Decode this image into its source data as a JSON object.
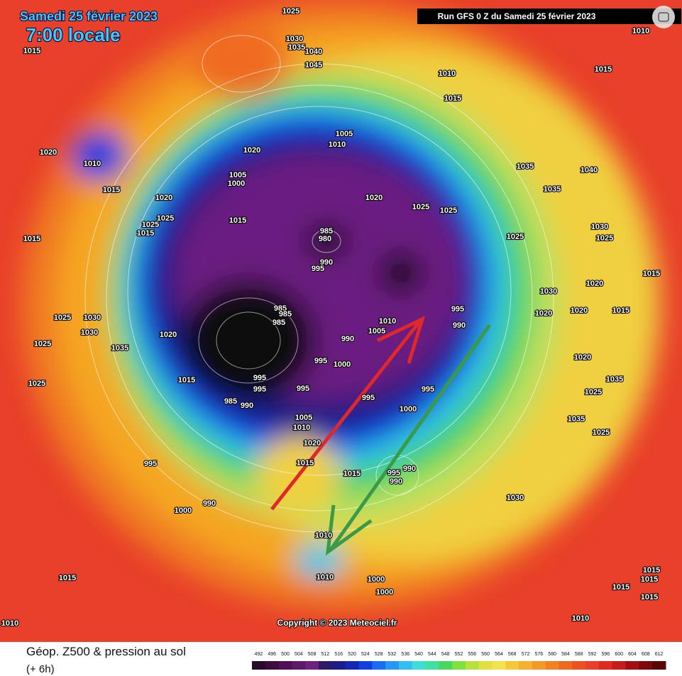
{
  "header": {
    "date": "Samedi 25 février 2023",
    "time": "7:00 locale",
    "run": "Run GFS 0 Z du Samedi 25 février 2023"
  },
  "copyright": "Copyright © 2023 Meteociel.fr",
  "legend": {
    "title": "Géop. Z500 & pression au sol",
    "subtitle": "(+ 6h)",
    "scale": [
      492,
      496,
      500,
      504,
      508,
      512,
      516,
      520,
      524,
      528,
      532,
      536,
      540,
      544,
      548,
      552,
      556,
      560,
      564,
      568,
      572,
      576,
      580,
      584,
      588,
      592,
      596,
      600,
      604,
      608,
      612
    ],
    "colors": [
      "#2a0a2a",
      "#3c0c3c",
      "#4e1052",
      "#5e1868",
      "#70207e",
      "#2e1a6a",
      "#1c1c8c",
      "#1428b4",
      "#1040e0",
      "#1a6cf0",
      "#2896f4",
      "#34bdf0",
      "#40dcd8",
      "#40e0a0",
      "#48d860",
      "#80e040",
      "#b8e040",
      "#e0e040",
      "#f5e050",
      "#f5c838",
      "#f5b030",
      "#f29a28",
      "#f08222",
      "#ee6a20",
      "#ec521e",
      "#e8402a",
      "#e02a20",
      "#c41c1c",
      "#a01010",
      "#7c0a0a",
      "#580606"
    ]
  },
  "labels": [
    1025,
    1015,
    1030,
    1035,
    1040,
    1045,
    1010,
    1015,
    1010,
    1015,
    1005,
    1010,
    1020,
    1020,
    1010,
    1005,
    1000,
    1015,
    1020,
    1020,
    1025,
    1025,
    1035,
    1040,
    1035,
    1025,
    1015,
    1015,
    1025,
    1015,
    985,
    980,
    990,
    995,
    1025,
    1030,
    1025,
    1015,
    1020,
    985,
    985,
    985,
    1020,
    1030,
    1025,
    1030,
    1035,
    1025,
    1015,
    1025,
    1010,
    1005,
    990,
    1000,
    995,
    990,
    1020,
    1020,
    1015,
    1030,
    1020,
    1035,
    1025,
    995,
    995,
    990,
    985,
    995,
    995,
    995,
    995,
    1000,
    1005,
    1010,
    1020,
    1015,
    1015,
    995,
    990,
    990,
    1035,
    1025,
    1030,
    995,
    1000,
    990,
    1015,
    1010,
    1010,
    1000,
    1000,
    1015,
    1015,
    1015,
    1015,
    1010,
    1010
  ]
}
